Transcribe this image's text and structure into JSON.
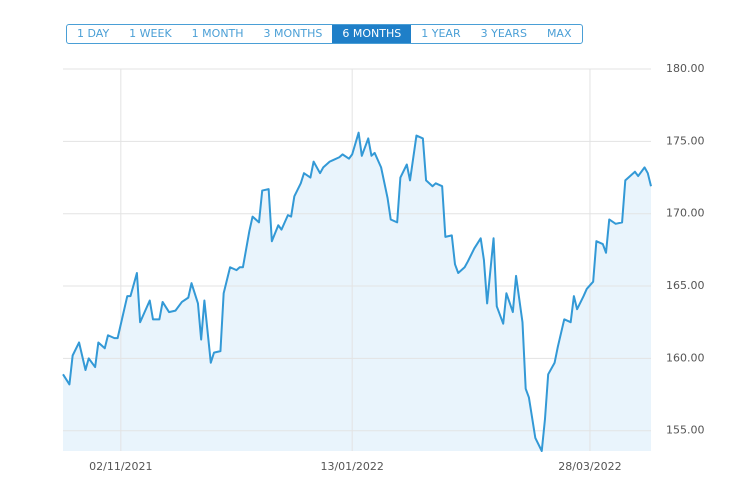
{
  "range_buttons": [
    {
      "label": "1 DAY"
    },
    {
      "label": "1 WEEK"
    },
    {
      "label": "1 MONTH"
    },
    {
      "label": "3 MONTHS"
    },
    {
      "label": "6 MONTHS",
      "active": true
    },
    {
      "label": "1 YEAR"
    },
    {
      "label": "3 YEARS"
    },
    {
      "label": "MAX"
    }
  ],
  "chart_data": {
    "type": "line",
    "color": "#3399d6",
    "fill_color": "#e9f4fc",
    "grid": true,
    "x": [
      "15/10/2021",
      "17/10/2021",
      "18/10/2021",
      "20/10/2021",
      "22/10/2021",
      "23/10/2021",
      "25/10/2021",
      "26/10/2021",
      "28/10/2021",
      "29/10/2021",
      "31/10/2021",
      "01/11/2021",
      "04/11/2021",
      "05/11/2021",
      "07/11/2021",
      "08/11/2021",
      "10/11/2021",
      "11/11/2021",
      "12/11/2021",
      "14/11/2021",
      "15/11/2021",
      "17/11/2021",
      "19/11/2021",
      "21/11/2021",
      "23/11/2021",
      "24/11/2021",
      "26/11/2021",
      "27/11/2021",
      "28/11/2021",
      "30/11/2021",
      "01/12/2021",
      "03/12/2021",
      "04/12/2021",
      "06/12/2021",
      "08/12/2021",
      "09/12/2021",
      "10/12/2021",
      "12/12/2021",
      "13/12/2021",
      "15/12/2021",
      "16/12/2021",
      "18/12/2021",
      "19/12/2021",
      "21/12/2021",
      "22/12/2021",
      "24/12/2021",
      "25/12/2021",
      "26/12/2021",
      "28/12/2021",
      "29/12/2021",
      "31/12/2021",
      "01/01/2022",
      "03/01/2022",
      "04/01/2022",
      "06/01/2022",
      "07/01/2022",
      "09/01/2022",
      "10/01/2022",
      "12/01/2022",
      "13/01/2022",
      "15/01/2022",
      "16/01/2022",
      "18/01/2022",
      "19/01/2022",
      "20/01/2022",
      "22/01/2022",
      "24/01/2022",
      "25/01/2022",
      "27/01/2022",
      "28/01/2022",
      "30/01/2022",
      "31/01/2022",
      "02/02/2022",
      "04/02/2022",
      "05/02/2022",
      "07/02/2022",
      "08/02/2022",
      "10/02/2022",
      "11/02/2022",
      "13/02/2022",
      "14/02/2022",
      "15/02/2022",
      "17/02/2022",
      "18/02/2022",
      "20/02/2022",
      "22/02/2022",
      "23/02/2022",
      "24/02/2022",
      "26/02/2022",
      "27/02/2022",
      "01/03/2022",
      "02/03/2022",
      "04/03/2022",
      "05/03/2022",
      "07/03/2022",
      "08/03/2022",
      "09/03/2022",
      "11/03/2022",
      "13/03/2022",
      "14/03/2022",
      "15/03/2022",
      "17/03/2022",
      "18/03/2022",
      "20/03/2022",
      "22/03/2022",
      "23/03/2022",
      "24/03/2022",
      "26/03/2022",
      "27/03/2022",
      "29/03/2022",
      "30/03/2022",
      "01/04/2022",
      "02/04/2022",
      "03/04/2022",
      "05/04/2022",
      "07/04/2022",
      "08/04/2022",
      "09/04/2022",
      "11/04/2022",
      "12/04/2022",
      "14/04/2022",
      "15/04/2022",
      "16/04/2022"
    ],
    "values": [
      158.9,
      158.2,
      160.2,
      161.1,
      159.2,
      160.0,
      159.4,
      161.1,
      160.7,
      161.6,
      161.4,
      161.4,
      164.3,
      164.3,
      165.9,
      162.5,
      163.5,
      164.0,
      162.7,
      162.7,
      163.9,
      163.2,
      163.3,
      163.9,
      164.2,
      165.2,
      163.8,
      161.3,
      164.0,
      159.7,
      160.4,
      160.5,
      164.5,
      166.3,
      166.1,
      166.3,
      166.3,
      168.8,
      169.8,
      169.4,
      171.6,
      171.7,
      168.1,
      169.2,
      168.9,
      169.9,
      169.8,
      171.2,
      172.1,
      172.8,
      172.5,
      173.6,
      172.8,
      173.2,
      173.6,
      173.7,
      173.9,
      174.1,
      173.8,
      174.1,
      175.6,
      174.0,
      175.2,
      174.0,
      174.2,
      173.2,
      171.1,
      169.6,
      169.4,
      172.5,
      173.4,
      172.3,
      175.4,
      175.2,
      172.3,
      171.9,
      172.1,
      171.9,
      168.4,
      168.5,
      166.5,
      165.9,
      166.3,
      166.7,
      167.6,
      168.3,
      166.8,
      163.8,
      168.3,
      163.6,
      162.4,
      164.5,
      163.2,
      165.7,
      162.5,
      157.9,
      157.3,
      154.5,
      153.6,
      155.8,
      158.9,
      159.7,
      160.8,
      162.7,
      162.5,
      164.3,
      163.4,
      164.3,
      164.8,
      165.3,
      168.1,
      167.9,
      167.3,
      169.6,
      169.3,
      169.4,
      172.3,
      172.5,
      172.9,
      172.6,
      173.2,
      172.8,
      171.9
    ],
    "xlim": [
      "15/10/2021",
      "16/04/2022"
    ],
    "xticks": [
      "02/11/2021",
      "13/01/2022",
      "28/03/2022"
    ],
    "ylim": [
      153.6,
      180
    ],
    "yticks": [
      {
        "value": 155,
        "label": "155.00"
      },
      {
        "value": 160,
        "label": "160.00"
      },
      {
        "value": 165,
        "label": "165.00"
      },
      {
        "value": 170,
        "label": "170.00"
      },
      {
        "value": 175,
        "label": "175.00"
      },
      {
        "value": 180,
        "label": "180.00"
      }
    ]
  }
}
